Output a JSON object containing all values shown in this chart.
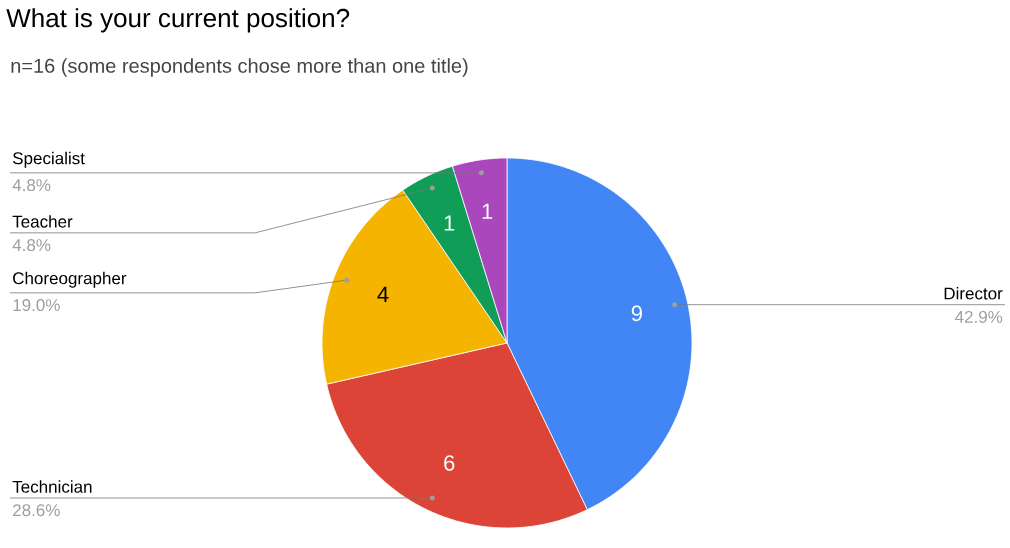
{
  "chart_data": {
    "type": "pie",
    "title": "What is your current position?",
    "subtitle": "n=16 (some respondents chose more than one title)",
    "categories": [
      "Director",
      "Technician",
      "Choreographer",
      "Teacher",
      "Specialist"
    ],
    "values": [
      9,
      6,
      4,
      1,
      1
    ],
    "colors": [
      "#4285f4",
      "#db4437",
      "#f4b400",
      "#0f9d58",
      "#ab47bc"
    ],
    "data_labels": true,
    "annotations": [
      "42.9%",
      "28.6%",
      "19.0%",
      "4.8%",
      "4.8%"
    ]
  }
}
